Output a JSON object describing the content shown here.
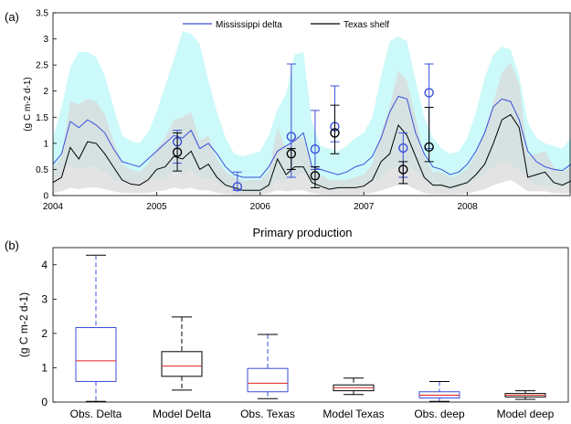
{
  "figure": {
    "panel_a_label": "(a)",
    "panel_b_label": "(b)",
    "panel_b_title": "Primary production"
  },
  "chart_data": [
    {
      "type": "line",
      "panel": "(a)",
      "ylabel": "(g C m-2 d-1)",
      "xlim": [
        2004,
        2009
      ],
      "ylim": [
        0,
        3.5
      ],
      "x_ticks": [
        2004,
        2005,
        2006,
        2007,
        2008
      ],
      "y_ticks": [
        0,
        0.5,
        1,
        1.5,
        2,
        2.5,
        3,
        3.5
      ],
      "legend": {
        "position": "top",
        "entries": [
          "Mississippi delta",
          "Texas shelf"
        ]
      },
      "colors": {
        "delta": "#3b4fd8",
        "texas": "#000000",
        "delta_band": "#ccf9f9",
        "texas_band": "#d9d9d9"
      },
      "x": [
        2004.0,
        2004.083,
        2004.167,
        2004.25,
        2004.333,
        2004.417,
        2004.5,
        2004.583,
        2004.667,
        2004.75,
        2004.833,
        2004.917,
        2005.0,
        2005.083,
        2005.167,
        2005.25,
        2005.333,
        2005.417,
        2005.5,
        2005.583,
        2005.667,
        2005.75,
        2005.833,
        2005.917,
        2006.0,
        2006.083,
        2006.167,
        2006.25,
        2006.333,
        2006.417,
        2006.5,
        2006.583,
        2006.667,
        2006.75,
        2006.833,
        2006.917,
        2007.0,
        2007.083,
        2007.167,
        2007.25,
        2007.333,
        2007.417,
        2007.5,
        2007.583,
        2007.667,
        2007.75,
        2007.833,
        2007.917,
        2008.0,
        2008.083,
        2008.167,
        2008.25,
        2008.333,
        2008.417,
        2008.5,
        2008.583,
        2008.667,
        2008.75,
        2008.833,
        2008.917,
        2009.0
      ],
      "series": [
        {
          "name": "Mississippi delta",
          "values": [
            0.6,
            0.8,
            1.42,
            1.3,
            1.45,
            1.35,
            1.2,
            0.9,
            0.65,
            0.6,
            0.55,
            0.7,
            0.85,
            1.0,
            1.15,
            1.1,
            1.25,
            0.9,
            1.0,
            0.8,
            0.55,
            0.4,
            0.35,
            0.35,
            0.35,
            0.55,
            0.85,
            0.95,
            1.05,
            1.2,
            0.55,
            0.5,
            0.45,
            0.4,
            0.45,
            0.55,
            0.6,
            0.75,
            1.1,
            1.6,
            1.9,
            1.85,
            1.2,
            0.8,
            0.55,
            0.5,
            0.4,
            0.45,
            0.6,
            0.85,
            1.2,
            1.7,
            1.85,
            1.8,
            1.45,
            0.85,
            0.65,
            0.55,
            0.5,
            0.48,
            0.6
          ]
        },
        {
          "name": "Texas shelf",
          "values": [
            0.25,
            0.35,
            0.92,
            0.7,
            1.03,
            1.0,
            0.8,
            0.55,
            0.3,
            0.22,
            0.2,
            0.3,
            0.5,
            0.55,
            0.75,
            0.7,
            0.85,
            0.5,
            0.6,
            0.35,
            0.2,
            0.15,
            0.1,
            0.1,
            0.1,
            0.2,
            0.7,
            0.4,
            0.55,
            0.55,
            0.25,
            0.18,
            0.12,
            0.15,
            0.15,
            0.15,
            0.18,
            0.3,
            0.65,
            0.8,
            1.35,
            1.15,
            0.75,
            0.35,
            0.2,
            0.2,
            0.15,
            0.2,
            0.25,
            0.4,
            0.6,
            1.0,
            1.45,
            1.55,
            1.3,
            0.35,
            0.4,
            0.45,
            0.25,
            0.2,
            0.28
          ]
        }
      ],
      "bands": [
        {
          "series": "Mississippi delta",
          "lower": [
            0.3,
            0.4,
            0.6,
            0.5,
            0.55,
            0.55,
            0.45,
            0.3,
            0.25,
            0.25,
            0.25,
            0.3,
            0.3,
            0.35,
            0.45,
            0.4,
            0.5,
            0.3,
            0.35,
            0.25,
            0.15,
            0.1,
            0.05,
            0.05,
            0.05,
            0.15,
            0.3,
            0.3,
            0.35,
            0.45,
            0.2,
            0.15,
            0.12,
            0.12,
            0.15,
            0.2,
            0.2,
            0.25,
            0.35,
            0.5,
            0.55,
            0.6,
            0.45,
            0.3,
            0.2,
            0.15,
            0.12,
            0.15,
            0.2,
            0.3,
            0.4,
            0.55,
            0.65,
            0.6,
            0.5,
            0.3,
            0.2,
            0.2,
            0.18,
            0.15,
            0.2
          ],
          "upper": [
            1.1,
            1.7,
            2.45,
            2.75,
            2.75,
            2.65,
            2.3,
            1.7,
            1.15,
            1.05,
            1.0,
            1.2,
            1.6,
            2.1,
            2.6,
            3.15,
            3.1,
            2.9,
            2.2,
            1.6,
            1.1,
            0.8,
            0.75,
            0.8,
            0.85,
            1.15,
            1.65,
            1.95,
            2.7,
            2.75,
            1.4,
            0.95,
            0.9,
            0.85,
            0.95,
            1.1,
            1.2,
            1.5,
            2.3,
            2.95,
            3.05,
            2.95,
            2.2,
            1.5,
            1.1,
            0.9,
            0.8,
            0.85,
            1.1,
            1.6,
            2.25,
            2.7,
            2.85,
            2.8,
            2.3,
            1.4,
            1.1,
            1.0,
            0.95,
            0.9,
            1.1
          ]
        },
        {
          "series": "Texas shelf",
          "lower": [
            0.05,
            0.08,
            0.15,
            0.12,
            0.15,
            0.15,
            0.12,
            0.08,
            0.05,
            0.05,
            0.05,
            0.05,
            0.08,
            0.1,
            0.15,
            0.12,
            0.15,
            0.1,
            0.1,
            0.05,
            0.03,
            0.02,
            0.02,
            0.02,
            0.02,
            0.05,
            0.1,
            0.08,
            0.1,
            0.1,
            0.05,
            0.03,
            0.02,
            0.02,
            0.02,
            0.02,
            0.03,
            0.05,
            0.1,
            0.15,
            0.2,
            0.2,
            0.12,
            0.05,
            0.03,
            0.03,
            0.02,
            0.03,
            0.04,
            0.08,
            0.12,
            0.2,
            0.25,
            0.3,
            0.2,
            0.08,
            0.08,
            0.08,
            0.05,
            0.04,
            0.05
          ],
          "upper": [
            0.55,
            0.75,
            1.8,
            1.75,
            1.85,
            1.8,
            1.55,
            1.05,
            0.6,
            0.5,
            0.45,
            0.6,
            0.9,
            1.1,
            1.45,
            1.5,
            1.6,
            1.05,
            1.15,
            0.7,
            0.45,
            0.35,
            0.28,
            0.3,
            0.3,
            0.45,
            1.3,
            0.9,
            1.15,
            1.1,
            0.55,
            0.4,
            0.3,
            0.3,
            0.3,
            0.35,
            0.4,
            0.6,
            1.2,
            1.7,
            2.4,
            2.2,
            1.5,
            0.75,
            0.45,
            0.45,
            0.35,
            0.4,
            0.5,
            0.8,
            1.2,
            1.8,
            2.35,
            2.55,
            2.15,
            0.75,
            0.8,
            0.85,
            0.55,
            0.45,
            0.55
          ]
        }
      ],
      "observations": [
        {
          "series": "Mississippi delta",
          "x": 2005.2,
          "y": 1.03,
          "lo": 0.62,
          "hi": 1.25
        },
        {
          "series": "Mississippi delta",
          "x": 2005.78,
          "y": 0.17,
          "lo": 0.1,
          "hi": 0.45
        },
        {
          "series": "Mississippi delta",
          "x": 2006.3,
          "y": 1.13,
          "lo": 0.35,
          "hi": 2.52
        },
        {
          "series": "Mississippi delta",
          "x": 2006.53,
          "y": 0.89,
          "lo": 0.5,
          "hi": 1.63
        },
        {
          "series": "Mississippi delta",
          "x": 2006.72,
          "y": 1.32,
          "lo": 1.03,
          "hi": 2.1
        },
        {
          "series": "Mississippi delta",
          "x": 2007.38,
          "y": 0.91,
          "lo": 0.35,
          "hi": 1.2
        },
        {
          "series": "Mississippi delta",
          "x": 2007.63,
          "y": 1.97,
          "lo": 0.9,
          "hi": 2.52
        },
        {
          "series": "Texas shelf",
          "x": 2005.2,
          "y": 0.83,
          "lo": 0.47,
          "hi": 1.2
        },
        {
          "series": "Texas shelf",
          "x": 2006.3,
          "y": 0.8,
          "lo": 0.5,
          "hi": 0.9
        },
        {
          "series": "Texas shelf",
          "x": 2006.53,
          "y": 0.38,
          "lo": 0.15,
          "hi": 0.55
        },
        {
          "series": "Texas shelf",
          "x": 2006.72,
          "y": 1.2,
          "lo": 0.8,
          "hi": 1.73
        },
        {
          "series": "Texas shelf",
          "x": 2007.38,
          "y": 0.5,
          "lo": 0.23,
          "hi": 0.65
        },
        {
          "series": "Texas shelf",
          "x": 2007.63,
          "y": 0.93,
          "lo": 0.65,
          "hi": 1.69
        }
      ],
      "grid": false
    },
    {
      "type": "box",
      "panel": "(b)",
      "title": "Primary production",
      "ylabel": "(g C m-2 d-1)",
      "ylim": [
        0,
        4.5
      ],
      "y_ticks": [
        0,
        1,
        2,
        3,
        4
      ],
      "categories": [
        "Obs. Delta",
        "Model Delta",
        "Obs. Texas",
        "Model Texas",
        "Obs. deep",
        "Model deep"
      ],
      "boxes": [
        {
          "min": 0.02,
          "q1": 0.6,
          "median": 1.2,
          "q3": 2.17,
          "max": 4.28,
          "color": "#3b4fd8"
        },
        {
          "min": 0.35,
          "q1": 0.75,
          "median": 1.05,
          "q3": 1.47,
          "max": 2.48,
          "color": "#000000"
        },
        {
          "min": 0.1,
          "q1": 0.3,
          "median": 0.55,
          "q3": 0.98,
          "max": 1.97,
          "color": "#3b4fd8"
        },
        {
          "min": 0.22,
          "q1": 0.33,
          "median": 0.42,
          "q3": 0.5,
          "max": 0.7,
          "color": "#000000"
        },
        {
          "min": 0.02,
          "q1": 0.12,
          "median": 0.2,
          "q3": 0.3,
          "max": 0.6,
          "color": "#3b4fd8"
        },
        {
          "min": 0.08,
          "q1": 0.15,
          "median": 0.2,
          "q3": 0.25,
          "max": 0.33,
          "color": "#000000"
        }
      ],
      "median_color": "#e02020",
      "grid": false
    }
  ]
}
